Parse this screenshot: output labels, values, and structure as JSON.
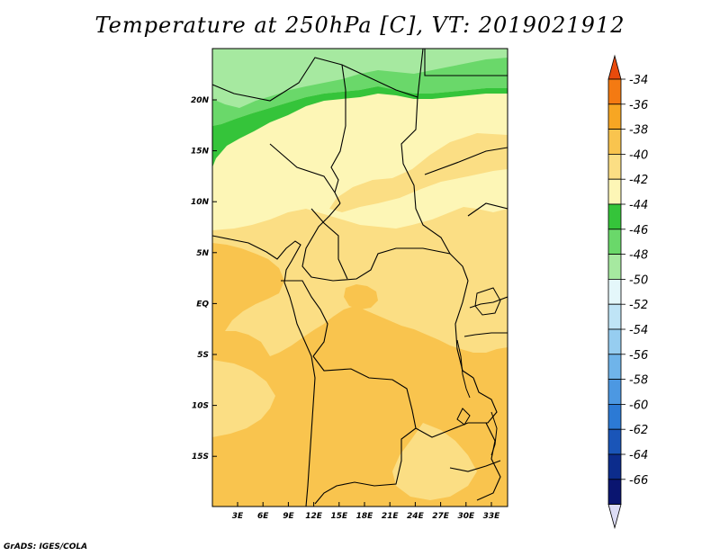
{
  "title": "Temperature at 250hPa [C], VT: 2019021912",
  "credit": "GrADS: IGES/COLA",
  "colors": {
    "lon_labels": [
      "3E",
      "6E",
      "9E",
      "12E",
      "15E",
      "18E",
      "21E",
      "24E",
      "27E",
      "30E",
      "33E"
    ],
    "lat_labels": [
      "20N",
      "15N",
      "10N",
      "5N",
      "EQ",
      "5S",
      "10S",
      "15S"
    ]
  },
  "colorbar": {
    "labels": [
      "-34",
      "-36",
      "-38",
      "-40",
      "-42",
      "-44",
      "-46",
      "-48",
      "-50",
      "-52",
      "-54",
      "-56",
      "-58",
      "-60",
      "-62",
      "-64",
      "-66"
    ],
    "colors": [
      "#e84a0c",
      "#f47a12",
      "#f7a623",
      "#f9c44e",
      "#fbde84",
      "#fdf6b6",
      "#35c43a",
      "#6ad86a",
      "#a6e9a0",
      "#e4f7fa",
      "#bfe4f6",
      "#96cdf0",
      "#6fb4ea",
      "#4c98e2",
      "#2c7ad5",
      "#1a55b8",
      "#0c2c8c",
      "#0a1570",
      "#dcdcf5"
    ]
  }
}
